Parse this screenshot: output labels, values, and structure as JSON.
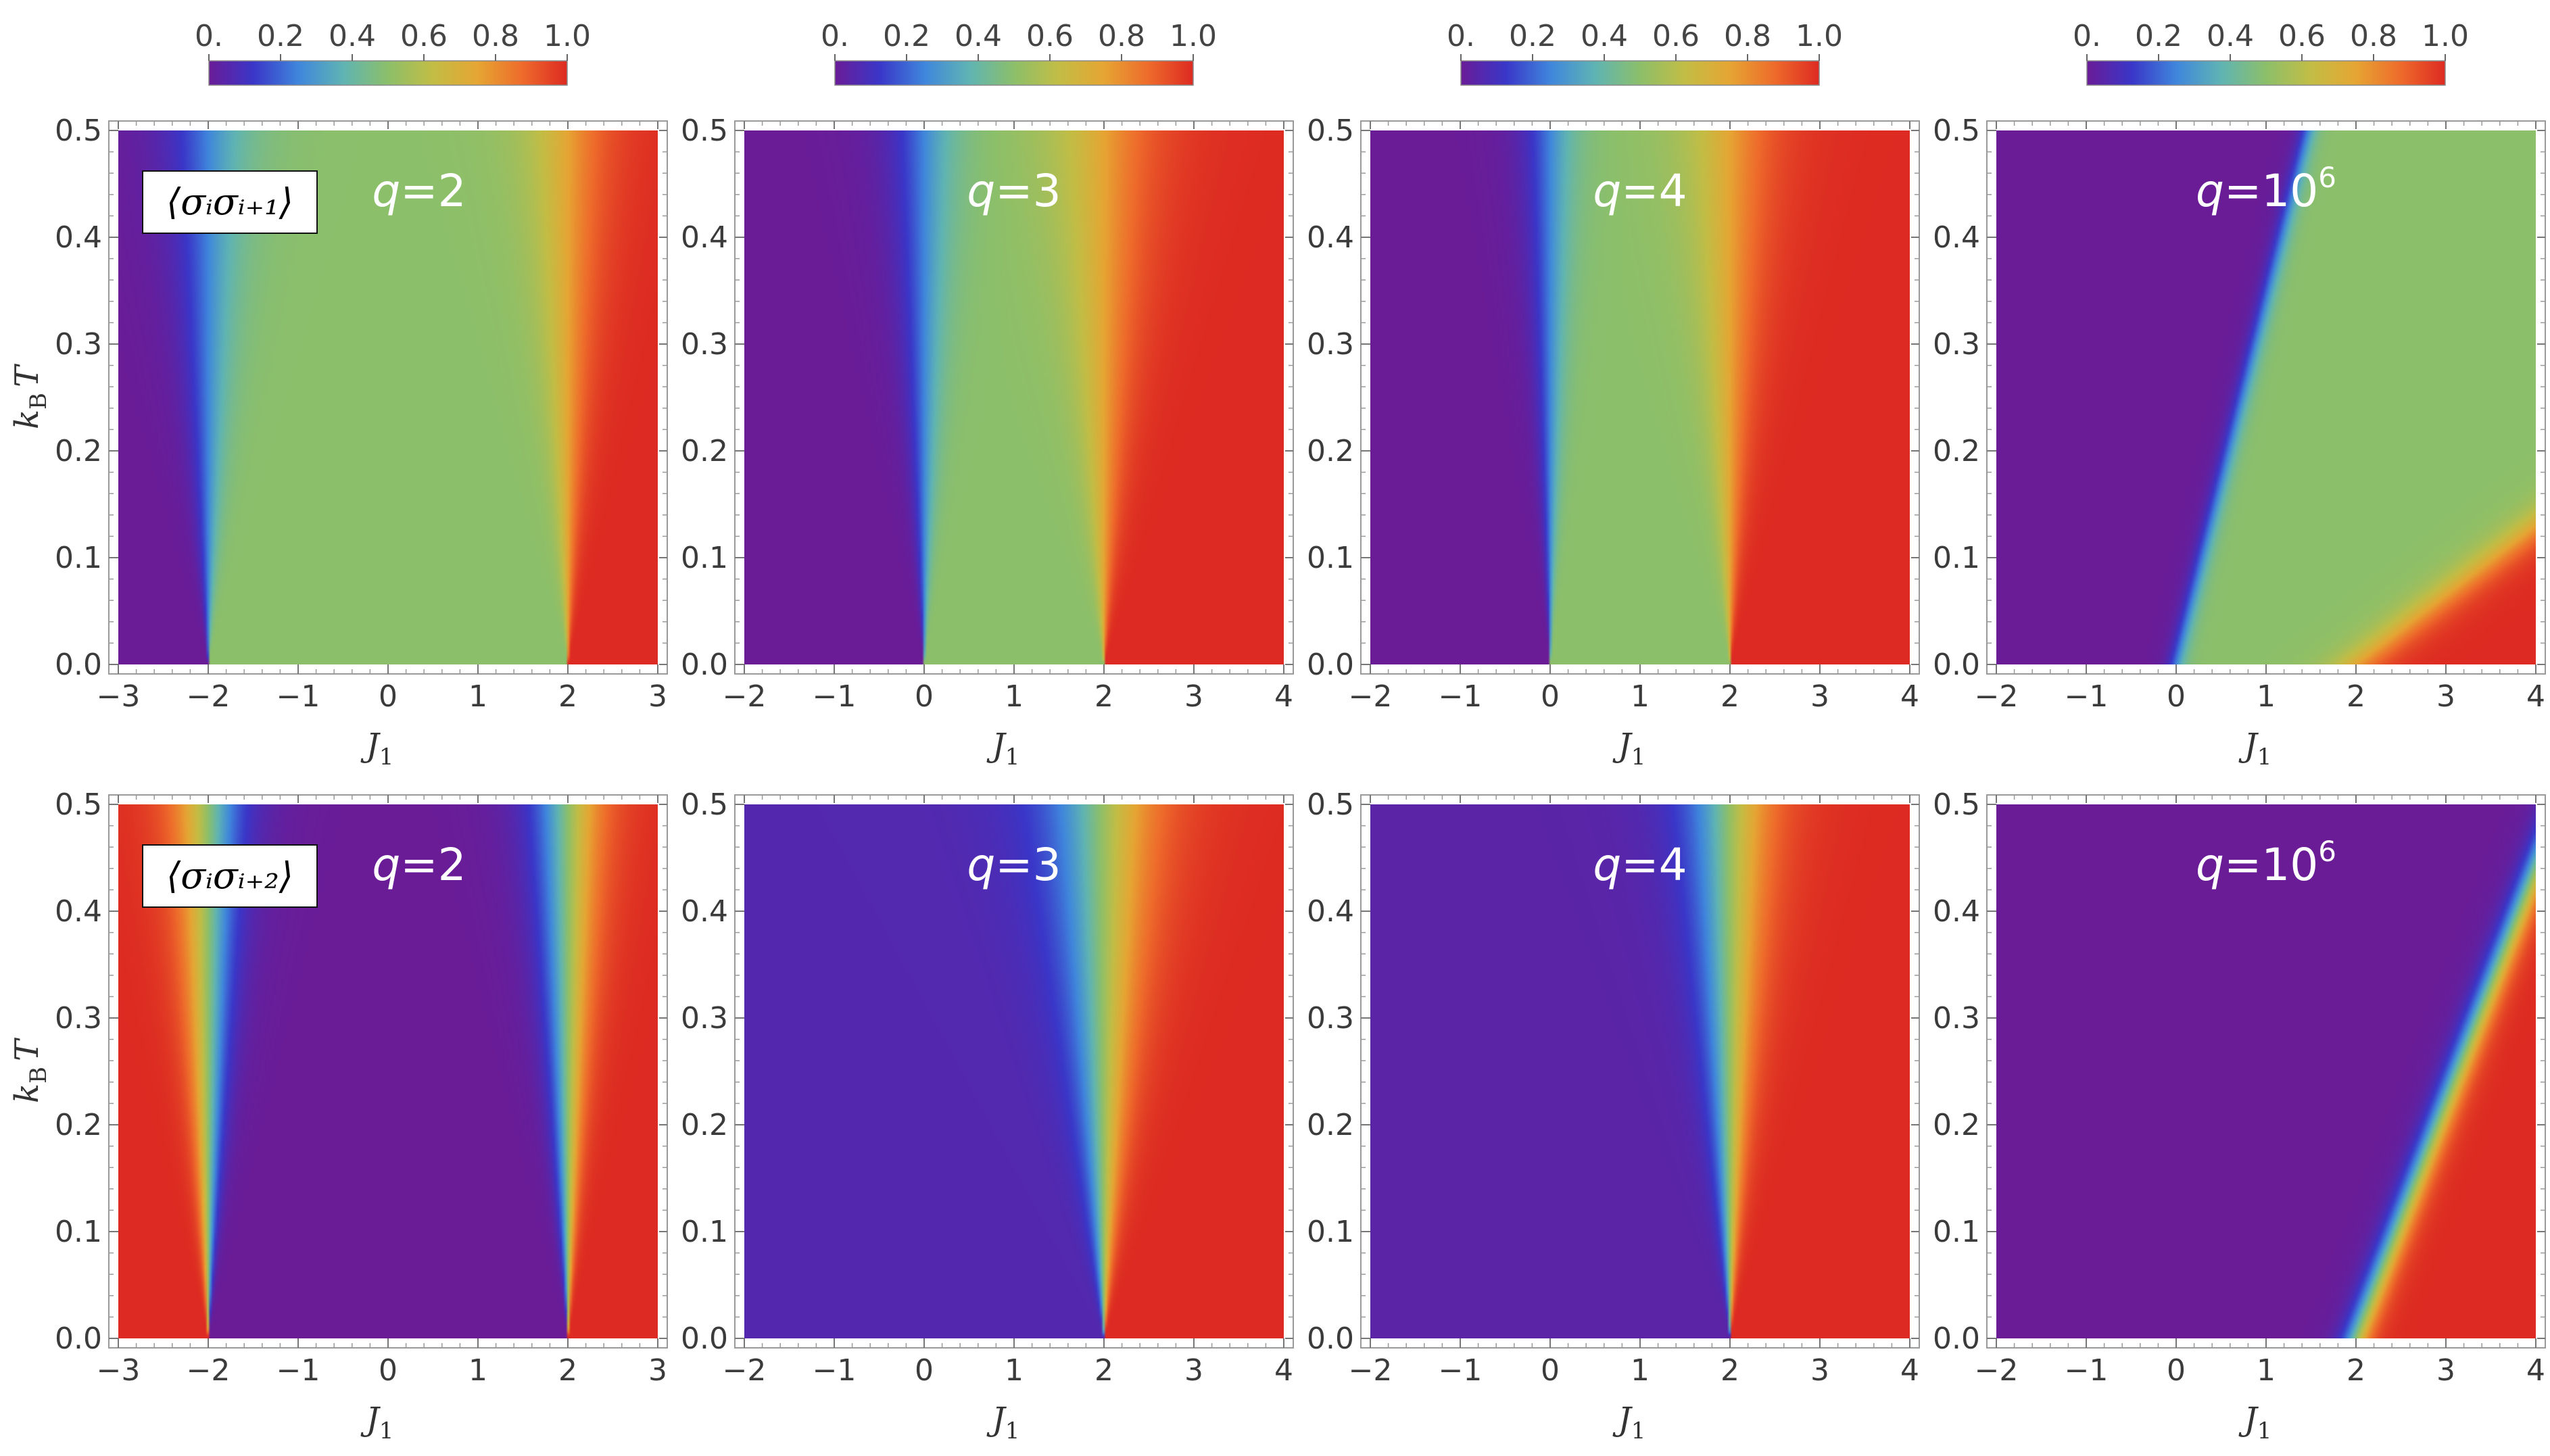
{
  "colorbar": {
    "tick_labels": [
      "0.",
      "0.2",
      "0.4",
      "0.6",
      "0.8",
      "1.0"
    ],
    "stops": [
      "#6a1c97",
      "#3a36c8",
      "#3f86dc",
      "#5fb4b3",
      "#8cbf6a",
      "#c2bd45",
      "#e6a533",
      "#ee6b2b",
      "#dd2a22"
    ]
  },
  "chart_data": [
    {
      "type": "heatmap",
      "row": 0,
      "col": 0,
      "observable": "⟨σᵢσᵢ₊₁⟩",
      "q_label": {
        "q": "q",
        "eq": "=2",
        "sup": ""
      },
      "xlabel": "J",
      "xlabel_sub": "1",
      "ylabel": "k",
      "ylabel_sub": "B",
      "ylabel_var": "T",
      "xlim": [
        -3,
        3
      ],
      "ylim": [
        0,
        0.5
      ],
      "xticks": [
        -3,
        -2,
        -1,
        0,
        1,
        2,
        3
      ],
      "yticks": [
        "0.0",
        "0.1",
        "0.2",
        "0.3",
        "0.4",
        "0.5"
      ],
      "value_range": [
        0,
        1
      ]
    },
    {
      "type": "heatmap",
      "row": 0,
      "col": 1,
      "observable": "",
      "q_label": {
        "q": "q",
        "eq": "=3",
        "sup": ""
      },
      "xlabel": "J",
      "xlabel_sub": "1",
      "ylabel": "",
      "ylabel_sub": "",
      "ylabel_var": "",
      "xlim": [
        -2,
        4
      ],
      "ylim": [
        0,
        0.5
      ],
      "xticks": [
        -2,
        -1,
        0,
        1,
        2,
        3,
        4
      ],
      "yticks": [
        "0.0",
        "0.1",
        "0.2",
        "0.3",
        "0.4",
        "0.5"
      ],
      "value_range": [
        0,
        1
      ]
    },
    {
      "type": "heatmap",
      "row": 0,
      "col": 2,
      "observable": "",
      "q_label": {
        "q": "q",
        "eq": "=4",
        "sup": ""
      },
      "xlabel": "J",
      "xlabel_sub": "1",
      "ylabel": "",
      "ylabel_sub": "",
      "ylabel_var": "",
      "xlim": [
        -2,
        4
      ],
      "ylim": [
        0,
        0.5
      ],
      "xticks": [
        -2,
        -1,
        0,
        1,
        2,
        3,
        4
      ],
      "yticks": [
        "0.0",
        "0.1",
        "0.2",
        "0.3",
        "0.4",
        "0.5"
      ],
      "value_range": [
        0,
        1
      ]
    },
    {
      "type": "heatmap",
      "row": 0,
      "col": 3,
      "observable": "",
      "q_label": {
        "q": "q",
        "eq": "=10",
        "sup": "6"
      },
      "xlabel": "J",
      "xlabel_sub": "1",
      "ylabel": "",
      "ylabel_sub": "",
      "ylabel_var": "",
      "xlim": [
        -2,
        4
      ],
      "ylim": [
        0,
        0.5
      ],
      "xticks": [
        -2,
        -1,
        0,
        1,
        2,
        3,
        4
      ],
      "yticks": [
        "0.0",
        "0.1",
        "0.2",
        "0.3",
        "0.4",
        "0.5"
      ],
      "value_range": [
        0,
        1
      ]
    },
    {
      "type": "heatmap",
      "row": 1,
      "col": 0,
      "observable": "⟨σᵢσᵢ₊₂⟩",
      "q_label": {
        "q": "q",
        "eq": "=2",
        "sup": ""
      },
      "xlabel": "J",
      "xlabel_sub": "1",
      "ylabel": "k",
      "ylabel_sub": "B",
      "ylabel_var": "T",
      "xlim": [
        -3,
        3
      ],
      "ylim": [
        0,
        0.5
      ],
      "xticks": [
        -3,
        -2,
        -1,
        0,
        1,
        2,
        3
      ],
      "yticks": [
        "0.0",
        "0.1",
        "0.2",
        "0.3",
        "0.4",
        "0.5"
      ],
      "value_range": [
        0,
        1
      ]
    },
    {
      "type": "heatmap",
      "row": 1,
      "col": 1,
      "observable": "",
      "q_label": {
        "q": "q",
        "eq": "=3",
        "sup": ""
      },
      "xlabel": "J",
      "xlabel_sub": "1",
      "ylabel": "",
      "ylabel_sub": "",
      "ylabel_var": "",
      "xlim": [
        -2,
        4
      ],
      "ylim": [
        0,
        0.5
      ],
      "xticks": [
        -2,
        -1,
        0,
        1,
        2,
        3,
        4
      ],
      "yticks": [
        "0.0",
        "0.1",
        "0.2",
        "0.3",
        "0.4",
        "0.5"
      ],
      "value_range": [
        0,
        1
      ]
    },
    {
      "type": "heatmap",
      "row": 1,
      "col": 2,
      "observable": "",
      "q_label": {
        "q": "q",
        "eq": "=4",
        "sup": ""
      },
      "xlabel": "J",
      "xlabel_sub": "1",
      "ylabel": "",
      "ylabel_sub": "",
      "ylabel_var": "",
      "xlim": [
        -2,
        4
      ],
      "ylim": [
        0,
        0.5
      ],
      "xticks": [
        -2,
        -1,
        0,
        1,
        2,
        3,
        4
      ],
      "yticks": [
        "0.0",
        "0.1",
        "0.2",
        "0.3",
        "0.4",
        "0.5"
      ],
      "value_range": [
        0,
        1
      ]
    },
    {
      "type": "heatmap",
      "row": 1,
      "col": 3,
      "observable": "",
      "q_label": {
        "q": "q",
        "eq": "=10",
        "sup": "6"
      },
      "xlabel": "J",
      "xlabel_sub": "1",
      "ylabel": "",
      "ylabel_sub": "",
      "ylabel_var": "",
      "xlim": [
        -2,
        4
      ],
      "ylim": [
        0,
        0.5
      ],
      "xticks": [
        -2,
        -1,
        0,
        1,
        2,
        3,
        4
      ],
      "yticks": [
        "0.0",
        "0.1",
        "0.2",
        "0.3",
        "0.4",
        "0.5"
      ],
      "value_range": [
        0,
        1
      ]
    }
  ]
}
